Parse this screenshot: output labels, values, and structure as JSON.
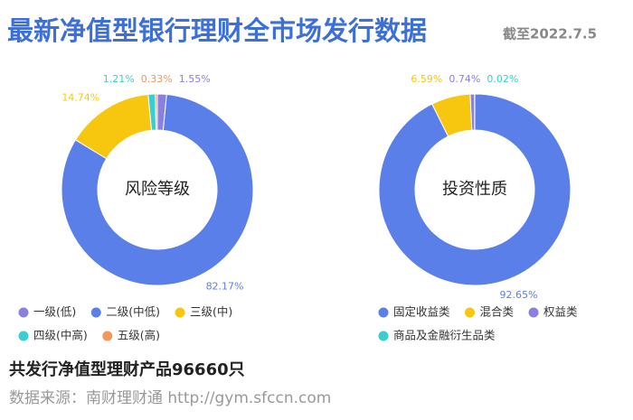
{
  "header": {
    "title": "最新净值型银行理财全市场发行数据",
    "subtitle": "截至2022.7.5"
  },
  "chart_data": [
    {
      "type": "donut",
      "title": "风险等级",
      "categories": [
        "一级(低)",
        "二级(中低)",
        "三级(中)",
        "四级(中高)",
        "五级(高)"
      ],
      "values": [
        1.55,
        82.17,
        14.74,
        1.21,
        0.33
      ],
      "value_labels": [
        "1.55%",
        "82.17%",
        "14.74%",
        "1.21%",
        "0.33%"
      ],
      "colors": [
        "#8a80e2",
        "#5b7fe8",
        "#f7c70f",
        "#37cfd0",
        "#f5965a"
      ]
    },
    {
      "type": "donut",
      "title": "投资性质",
      "categories": [
        "固定收益类",
        "混合类",
        "权益类",
        "商品及金融衍生品类"
      ],
      "values": [
        92.65,
        6.59,
        0.74,
        0.02
      ],
      "value_labels": [
        "92.65%",
        "6.59%",
        "0.74%",
        "0.02%"
      ],
      "colors": [
        "#5b7fe8",
        "#f7c70f",
        "#8a80e2",
        "#37cfd0"
      ]
    }
  ],
  "footer": {
    "summary": "共发行净值型理财产品96660只",
    "source": "数据来源：南财理财通 http://gym.sfccn.com"
  }
}
